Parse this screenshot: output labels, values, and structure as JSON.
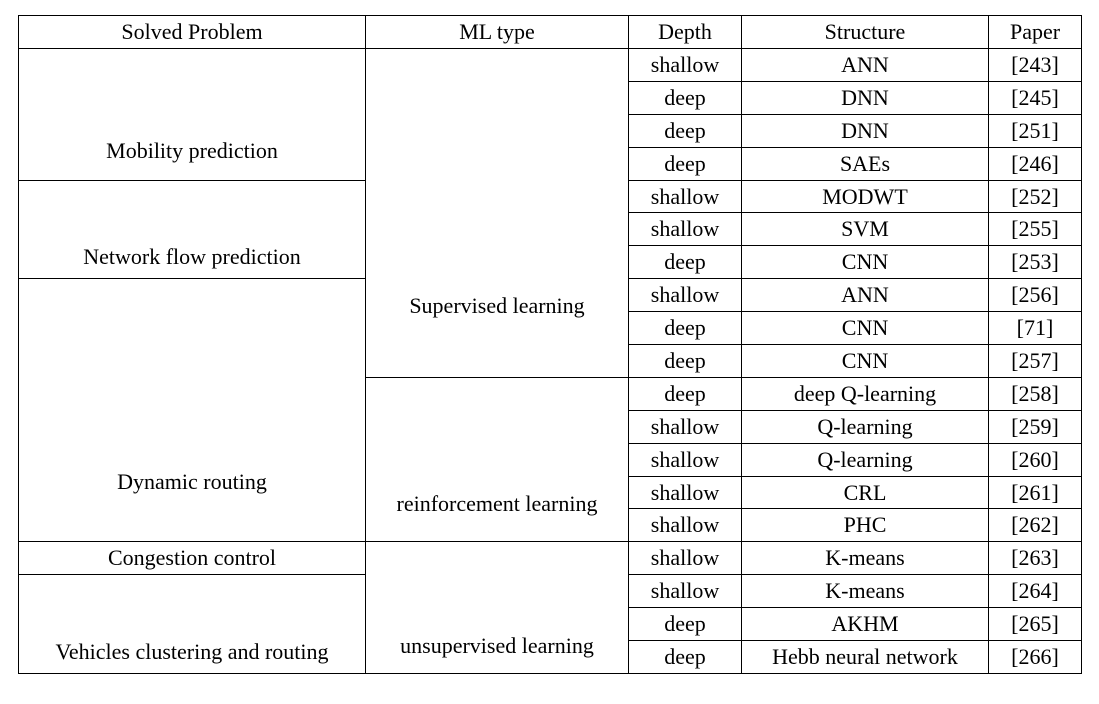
{
  "table": {
    "headers": {
      "problem": "Solved Problem",
      "ml_type": "ML type",
      "depth": "Depth",
      "structure": "Structure",
      "paper": "Paper"
    },
    "problems": {
      "mobility": "Mobility prediction",
      "flow": "Network flow prediction",
      "routing": "Dynamic routing",
      "congestion": "Congestion control",
      "clustering": "Vehicles clustering and routing"
    },
    "ml_types": {
      "supervised": "Supervised learning",
      "reinforcement": "reinforcement learning",
      "unsupervised": "unsupervised learning"
    },
    "rows": [
      {
        "depth": "shallow",
        "structure": "ANN",
        "paper": "[243]"
      },
      {
        "depth": "deep",
        "structure": "DNN",
        "paper": "[245]"
      },
      {
        "depth": "deep",
        "structure": "DNN",
        "paper": "[251]"
      },
      {
        "depth": "deep",
        "structure": "SAEs",
        "paper": "[246]"
      },
      {
        "depth": "shallow",
        "structure": "MODWT",
        "paper": "[252]"
      },
      {
        "depth": "shallow",
        "structure": "SVM",
        "paper": "[255]"
      },
      {
        "depth": "deep",
        "structure": "CNN",
        "paper": "[253]"
      },
      {
        "depth": "shallow",
        "structure": "ANN",
        "paper": "[256]"
      },
      {
        "depth": "deep",
        "structure": "CNN",
        "paper": "[71]"
      },
      {
        "depth": "deep",
        "structure": "CNN",
        "paper": "[257]"
      },
      {
        "depth": "deep",
        "structure": "deep Q-learning",
        "paper": "[258]"
      },
      {
        "depth": "shallow",
        "structure": "Q-learning",
        "paper": "[259]"
      },
      {
        "depth": "shallow",
        "structure": "Q-learning",
        "paper": "[260]"
      },
      {
        "depth": "shallow",
        "structure": "CRL",
        "paper": "[261]"
      },
      {
        "depth": "shallow",
        "structure": "PHC",
        "paper": "[262]"
      },
      {
        "depth": "shallow",
        "structure": "K-means",
        "paper": "[263]"
      },
      {
        "depth": "shallow",
        "structure": "K-means",
        "paper": "[264]"
      },
      {
        "depth": "deep",
        "structure": "AKHM",
        "paper": "[265]"
      },
      {
        "depth": "deep",
        "structure": "Hebb neural network",
        "paper": "[266]"
      }
    ]
  }
}
